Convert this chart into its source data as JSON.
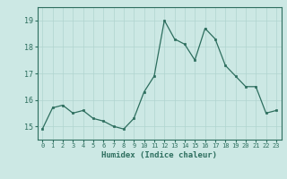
{
  "x": [
    0,
    1,
    2,
    3,
    4,
    5,
    6,
    7,
    8,
    9,
    10,
    11,
    12,
    13,
    14,
    15,
    16,
    17,
    18,
    19,
    20,
    21,
    22,
    23
  ],
  "y": [
    14.9,
    15.7,
    15.8,
    15.5,
    15.6,
    15.3,
    15.2,
    15.0,
    14.9,
    15.3,
    16.3,
    16.9,
    19.0,
    18.3,
    18.1,
    17.5,
    18.7,
    18.3,
    17.3,
    16.9,
    16.5,
    16.5,
    15.5,
    15.6
  ],
  "xlabel": "Humidex (Indice chaleur)",
  "ylim": [
    14.5,
    19.5
  ],
  "xlim": [
    -0.5,
    23.5
  ],
  "yticks": [
    15,
    16,
    17,
    18,
    19
  ],
  "xticks": [
    0,
    1,
    2,
    3,
    4,
    5,
    6,
    7,
    8,
    9,
    10,
    11,
    12,
    13,
    14,
    15,
    16,
    17,
    18,
    19,
    20,
    21,
    22,
    23
  ],
  "line_color": "#2d6e5e",
  "marker_color": "#2d6e5e",
  "bg_color": "#cce8e4",
  "grid_color": "#b0d4cf",
  "axis_color": "#2d6e5e",
  "tick_label_color": "#2d6e5e",
  "xlabel_color": "#2d6e5e"
}
